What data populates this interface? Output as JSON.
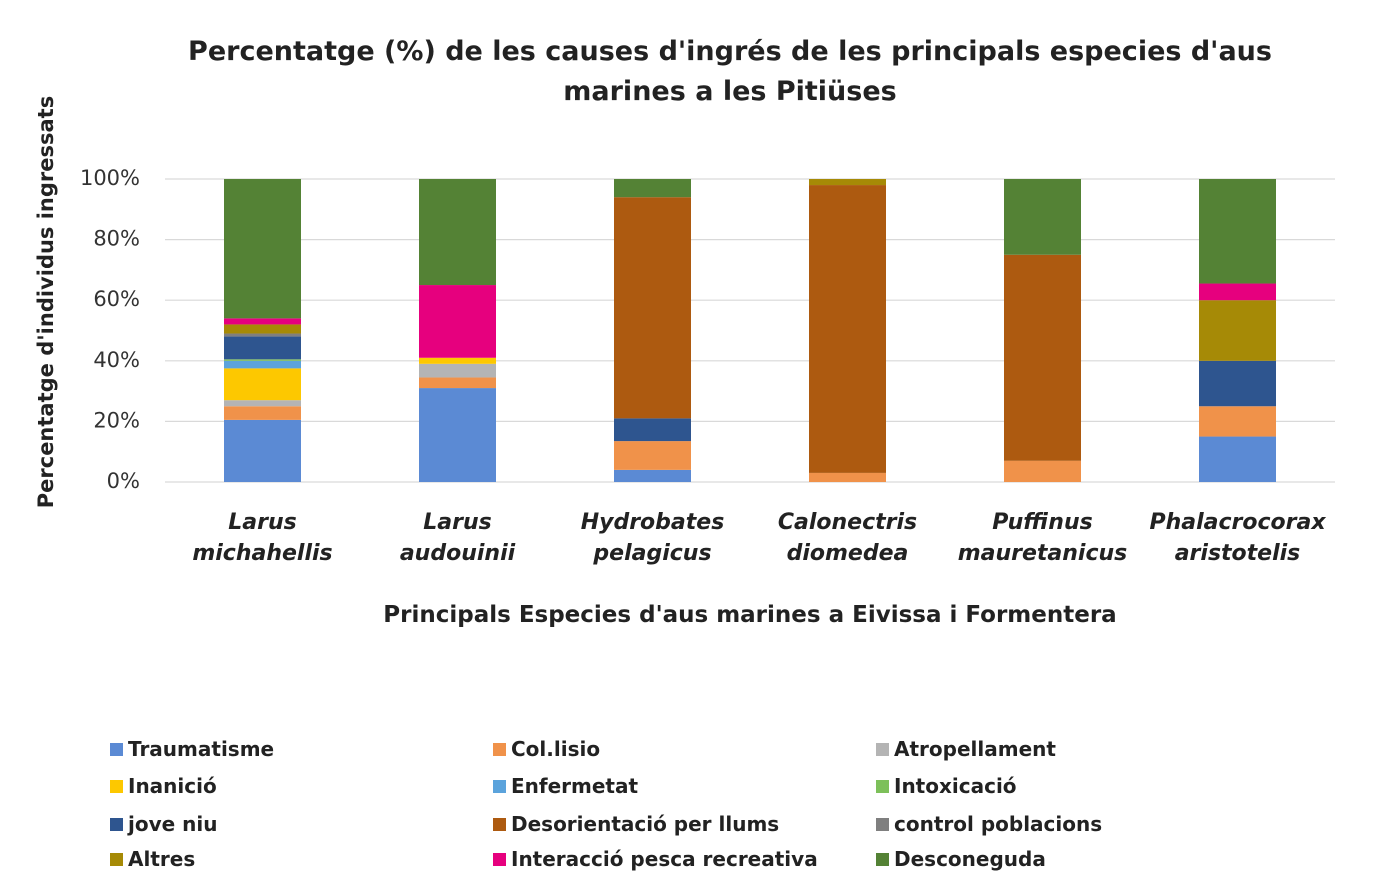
{
  "chart_data": {
    "type": "stacked_bar",
    "title": "Percentatge (%) de les causes d'ingrés de les principals especies d'aus marines a les Pitiüses",
    "x_label": "Principals Especies d'aus marines a Eivissa i Formentera",
    "y_label": "Percentatge d'individus ingressats",
    "categories": [
      "Larus michahellis",
      "Larus audouinii",
      "Hydrobates pelagicus",
      "Calonectris diomedea",
      "Puffinus mauretanicus",
      "Phalacrocorax aristotelis"
    ],
    "ylim": [
      0,
      100
    ],
    "yticks": [
      {
        "value": 0,
        "label": "0%"
      },
      {
        "value": 20,
        "label": "20%"
      },
      {
        "value": 40,
        "label": "40%"
      },
      {
        "value": 60,
        "label": "60%"
      },
      {
        "value": 80,
        "label": "80%"
      },
      {
        "value": 100,
        "label": "100%"
      }
    ],
    "grid": true,
    "legend": "bottom",
    "series": [
      {
        "name": "Traumatisme",
        "color": "#5b8ad4",
        "values": [
          20.5,
          31,
          4,
          0,
          0,
          15
        ]
      },
      {
        "name": "Col.lisio",
        "color": "#f0924a",
        "values": [
          4.5,
          3.5,
          9.5,
          3,
          7,
          10
        ]
      },
      {
        "name": "Atropellament",
        "color": "#b4b4b4",
        "values": [
          2,
          4.5,
          0,
          0,
          0,
          0
        ]
      },
      {
        "name": "Inanició",
        "color": "#fdc800",
        "values": [
          10.5,
          2,
          0,
          0,
          0,
          0
        ]
      },
      {
        "name": "Enfermetat",
        "color": "#5ba3dc",
        "values": [
          2.5,
          0,
          0,
          0,
          0,
          0
        ]
      },
      {
        "name": "Intoxicació",
        "color": "#7dc05a",
        "values": [
          0.5,
          0,
          0,
          0,
          0,
          0
        ]
      },
      {
        "name": "jove niu",
        "color": "#2e558f",
        "values": [
          7.5,
          0,
          7.5,
          0,
          0,
          15
        ]
      },
      {
        "name": "Desorientació per llums",
        "color": "#ad5a10",
        "values": [
          0,
          0,
          73,
          95,
          68,
          0
        ]
      },
      {
        "name": "control poblacions",
        "color": "#7f7f7f",
        "values": [
          1,
          0,
          0,
          0,
          0,
          0
        ]
      },
      {
        "name": "Altres",
        "color": "#a68a06",
        "values": [
          3,
          0,
          0,
          2,
          0,
          20
        ]
      },
      {
        "name": "Interacció pesca recreativa",
        "color": "#e6007e",
        "values": [
          2,
          24,
          0,
          0,
          0,
          5.5
        ]
      },
      {
        "name": "Desconeguda",
        "color": "#548235",
        "values": [
          46,
          35,
          6,
          0,
          25,
          34.5
        ]
      }
    ]
  }
}
